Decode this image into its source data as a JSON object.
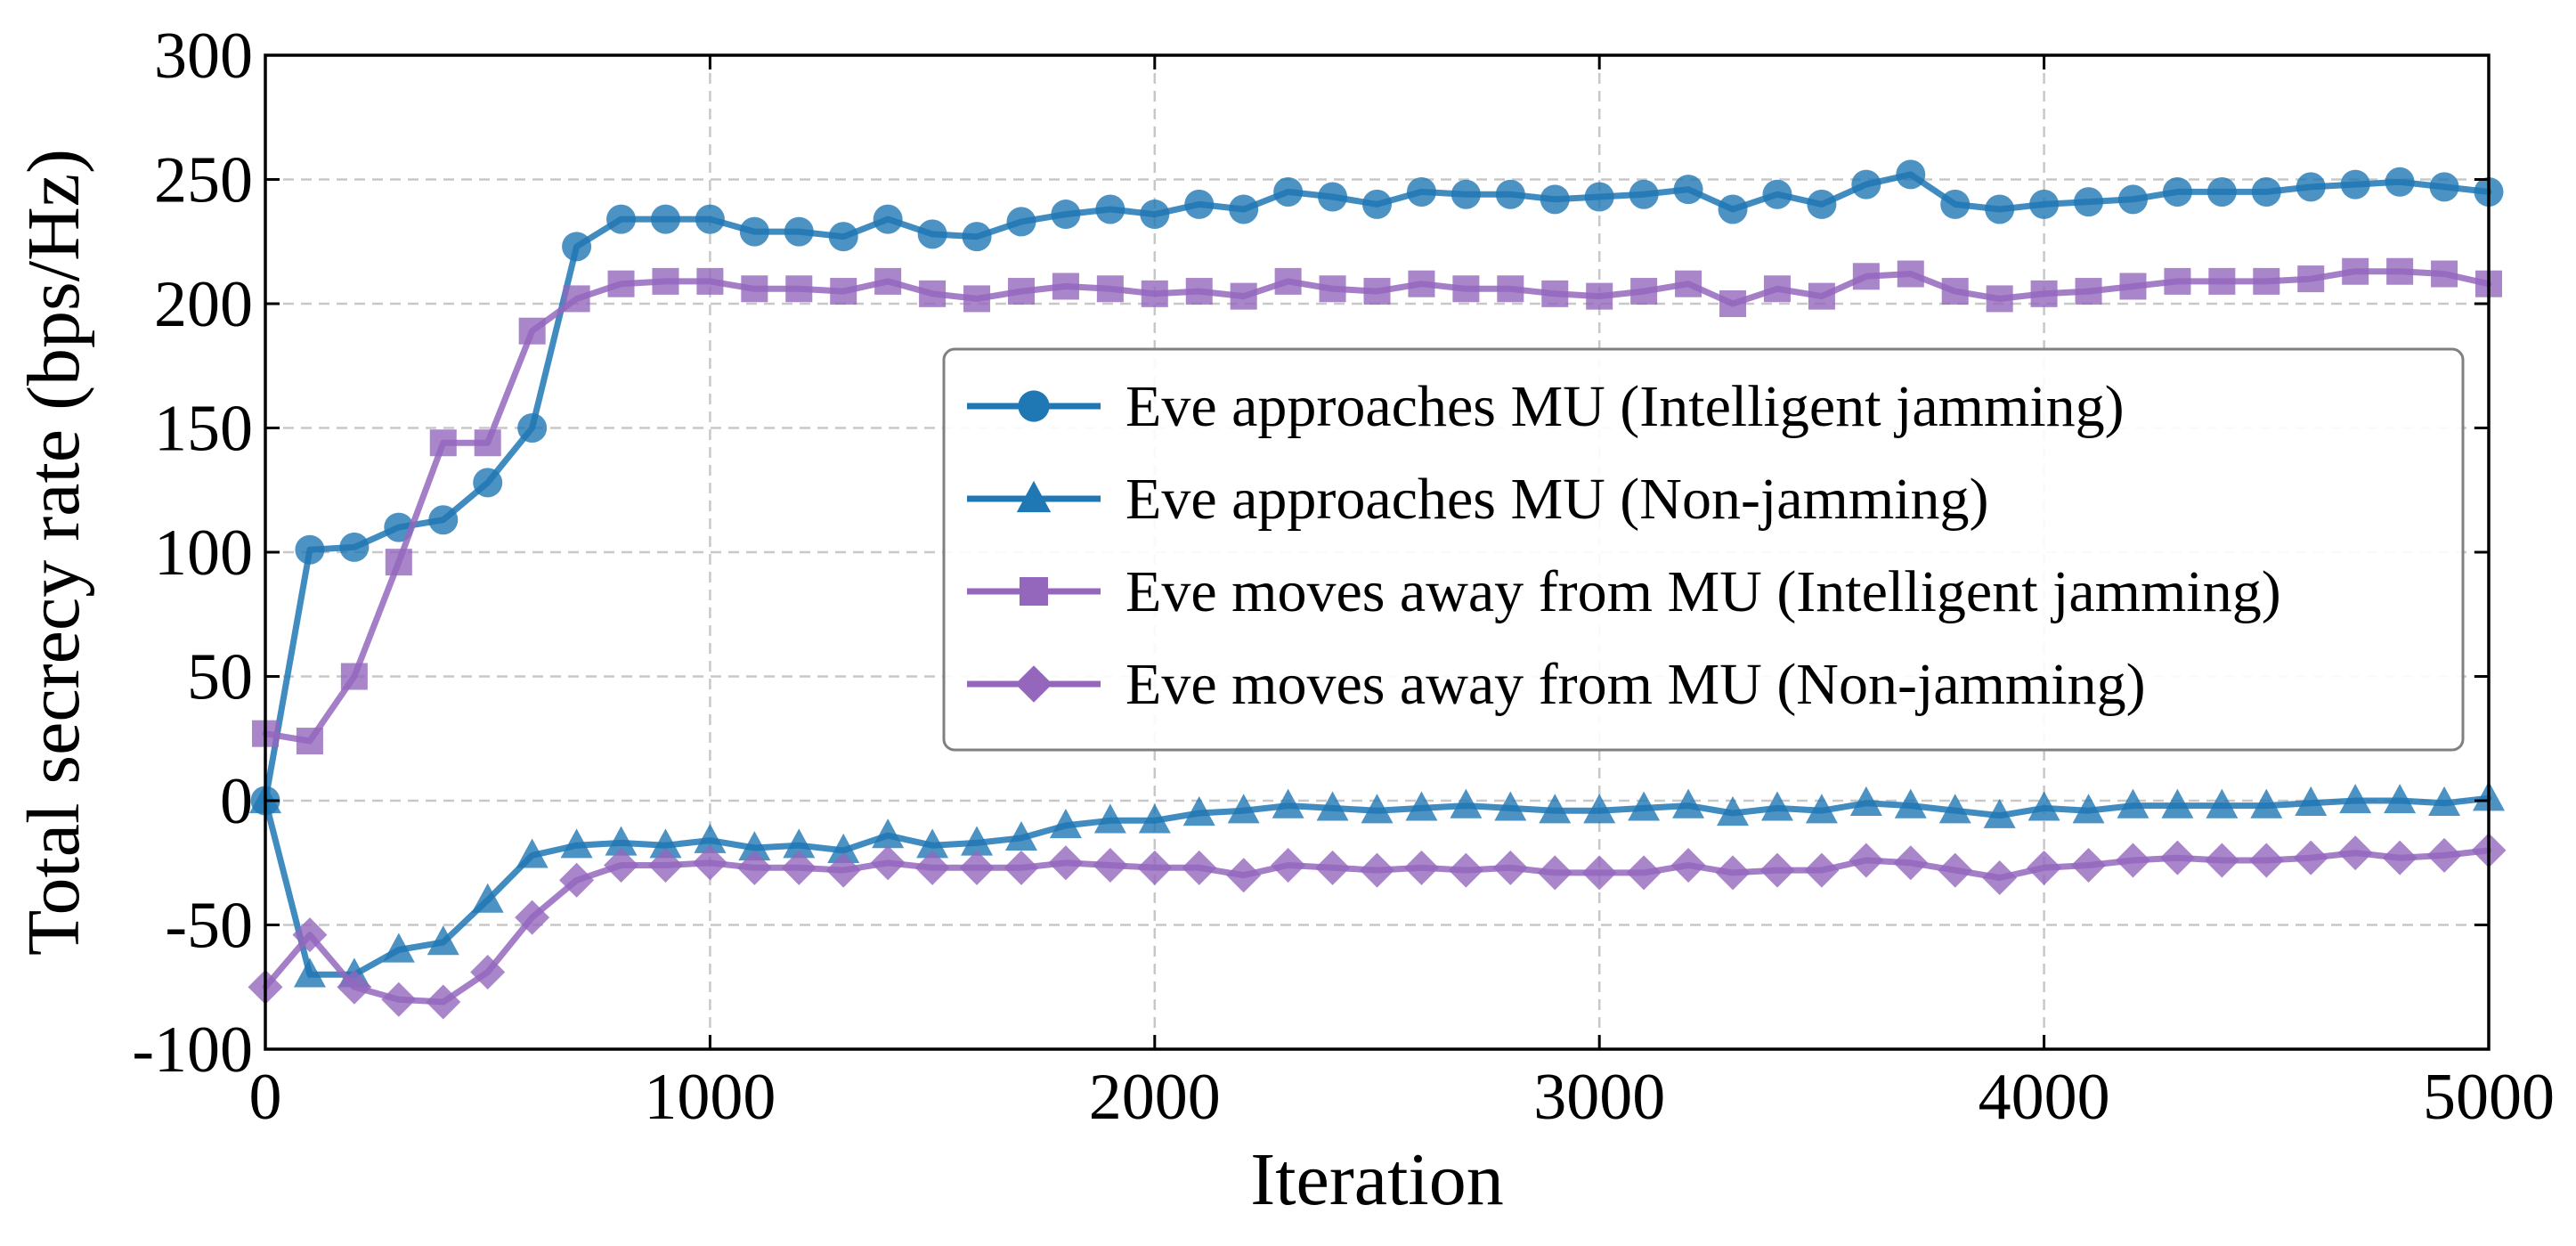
{
  "chart_data": {
    "type": "line",
    "title": "",
    "xlabel": "Iteration",
    "ylabel": "Total secrecy rate (bps/Hz)",
    "xlim": [
      0,
      5000
    ],
    "ylim": [
      -100,
      300
    ],
    "x_ticks": [
      "0",
      "1000",
      "2000",
      "3000",
      "4000",
      "5000"
    ],
    "y_ticks": [
      "-100",
      "-50",
      "0",
      "50",
      "100",
      "150",
      "200",
      "250",
      "300"
    ],
    "grid": true,
    "legend_position": "center-right",
    "marker_every": 100,
    "x": [
      0,
      100,
      200,
      300,
      400,
      500,
      600,
      700,
      800,
      900,
      1000,
      1100,
      1200,
      1300,
      1400,
      1500,
      1600,
      1700,
      1800,
      1900,
      2000,
      2100,
      2200,
      2300,
      2400,
      2500,
      2600,
      2700,
      2800,
      2900,
      3000,
      3100,
      3200,
      3300,
      3400,
      3500,
      3600,
      3700,
      3800,
      3900,
      4000,
      4100,
      4200,
      4300,
      4400,
      4500,
      4600,
      4700,
      4800,
      4900,
      5000
    ],
    "series": [
      {
        "name": "Eve approaches MU (Intelligent jamming)",
        "marker": "circle",
        "color": "#1f77b4",
        "values": [
          0,
          101,
          102,
          110,
          113,
          128,
          150,
          223,
          234,
          234,
          234,
          229,
          229,
          227,
          234,
          228,
          227,
          233,
          236,
          238,
          236,
          240,
          238,
          245,
          243,
          240,
          245,
          244,
          244,
          242,
          243,
          244,
          246,
          238,
          244,
          240,
          248,
          252,
          240,
          238,
          240,
          241,
          242,
          245,
          245,
          245,
          247,
          248,
          249,
          247,
          245
        ]
      },
      {
        "name": "Eve approaches MU (Non-jamming)",
        "marker": "triangle",
        "color": "#1f77b4",
        "values": [
          0,
          -70,
          -70,
          -60,
          -57,
          -40,
          -22,
          -18,
          -17,
          -18,
          -16,
          -19,
          -18,
          -20,
          -14,
          -18,
          -17,
          -15,
          -10,
          -8,
          -8,
          -5,
          -4,
          -2,
          -3,
          -4,
          -3,
          -2,
          -3,
          -4,
          -4,
          -3,
          -2,
          -5,
          -3,
          -4,
          -1,
          -2,
          -4,
          -6,
          -3,
          -4,
          -2,
          -2,
          -2,
          -2,
          -1,
          0,
          0,
          -1,
          1
        ]
      },
      {
        "name": "Eve moves away from MU (Intelligent jamming)",
        "marker": "square",
        "color": "#9467bd",
        "values": [
          27,
          24,
          50,
          96,
          144,
          144,
          189,
          202,
          208,
          209,
          209,
          206,
          206,
          205,
          209,
          204,
          202,
          205,
          207,
          206,
          204,
          205,
          203,
          209,
          206,
          205,
          208,
          206,
          206,
          204,
          203,
          205,
          208,
          200,
          206,
          203,
          211,
          212,
          205,
          202,
          204,
          205,
          207,
          209,
          209,
          209,
          210,
          213,
          213,
          212,
          208
        ]
      },
      {
        "name": "Eve moves away from MU (Non-jamming)",
        "marker": "diamond",
        "color": "#9467bd",
        "values": [
          -75,
          -54,
          -75,
          -80,
          -81,
          -69,
          -47,
          -32,
          -26,
          -26,
          -25,
          -27,
          -27,
          -28,
          -25,
          -27,
          -27,
          -27,
          -25,
          -26,
          -27,
          -27,
          -30,
          -26,
          -27,
          -28,
          -27,
          -28,
          -27,
          -29,
          -29,
          -29,
          -26,
          -29,
          -28,
          -28,
          -24,
          -25,
          -28,
          -31,
          -27,
          -26,
          -24,
          -23,
          -24,
          -24,
          -23,
          -21,
          -23,
          -22,
          -20
        ]
      }
    ]
  }
}
